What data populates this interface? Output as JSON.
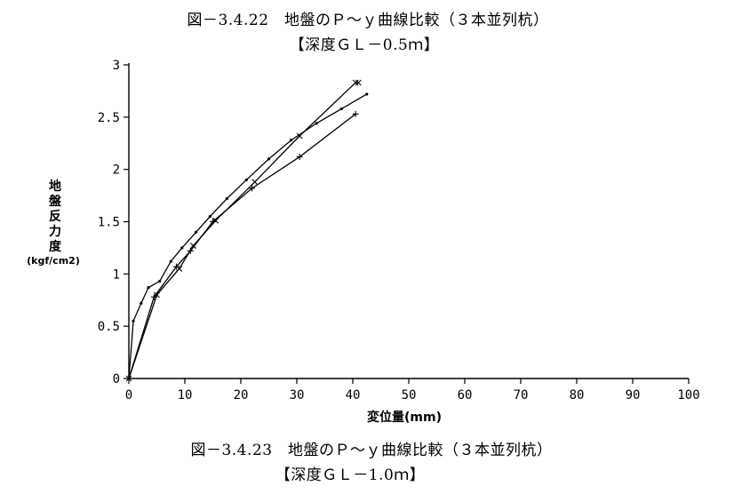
{
  "captions": {
    "top_title": "図－3.4.22　地盤のＰ～ｙ曲線比較（３本並列杭）",
    "top_sub": "【深度ＧＬ－0.5ｍ】",
    "bottom_title": "図－3.4.23　地盤のＰ～ｙ曲線比較（３本並列杭）",
    "bottom_sub": "【深度ＧＬ－1.0ｍ】"
  },
  "chart_data": {
    "type": "line",
    "title": "",
    "xlabel": "変位量(mm)",
    "ylabel": "地盤反力度",
    "ylabel_unit": "(kgf/cm2)",
    "xlim": [
      0,
      100
    ],
    "ylim": [
      0,
      3
    ],
    "xticks": [
      "0",
      "10",
      "20",
      "30",
      "40",
      "50",
      "60",
      "70",
      "80",
      "90",
      "100"
    ],
    "yticks": [
      "0",
      "0.5",
      "1",
      "1.5",
      "2",
      "2.5",
      "3"
    ],
    "grid": false,
    "series": [
      {
        "marker": "dot",
        "x": [
          0,
          0.8,
          2.2,
          3.5,
          5.5,
          7.5,
          9.5,
          12,
          14.5,
          17.5,
          21,
          25,
          29,
          33.5,
          38,
          42.5
        ],
        "y": [
          0,
          0.55,
          0.72,
          0.87,
          0.93,
          1.12,
          1.25,
          1.4,
          1.55,
          1.72,
          1.9,
          2.1,
          2.28,
          2.44,
          2.58,
          2.72
        ]
      },
      {
        "marker": "x",
        "x": [
          0,
          5,
          9,
          11.5,
          15.5,
          22.5,
          30.5,
          40.5,
          41
        ],
        "y": [
          0,
          0.8,
          1.05,
          1.27,
          1.51,
          1.88,
          2.32,
          2.83,
          2.83
        ]
      },
      {
        "marker": "plus",
        "x": [
          0,
          4.5,
          8.5,
          11,
          15,
          22,
          30.5,
          40.5
        ],
        "y": [
          0,
          0.78,
          1.07,
          1.22,
          1.5,
          1.82,
          2.12,
          2.53
        ]
      }
    ]
  }
}
